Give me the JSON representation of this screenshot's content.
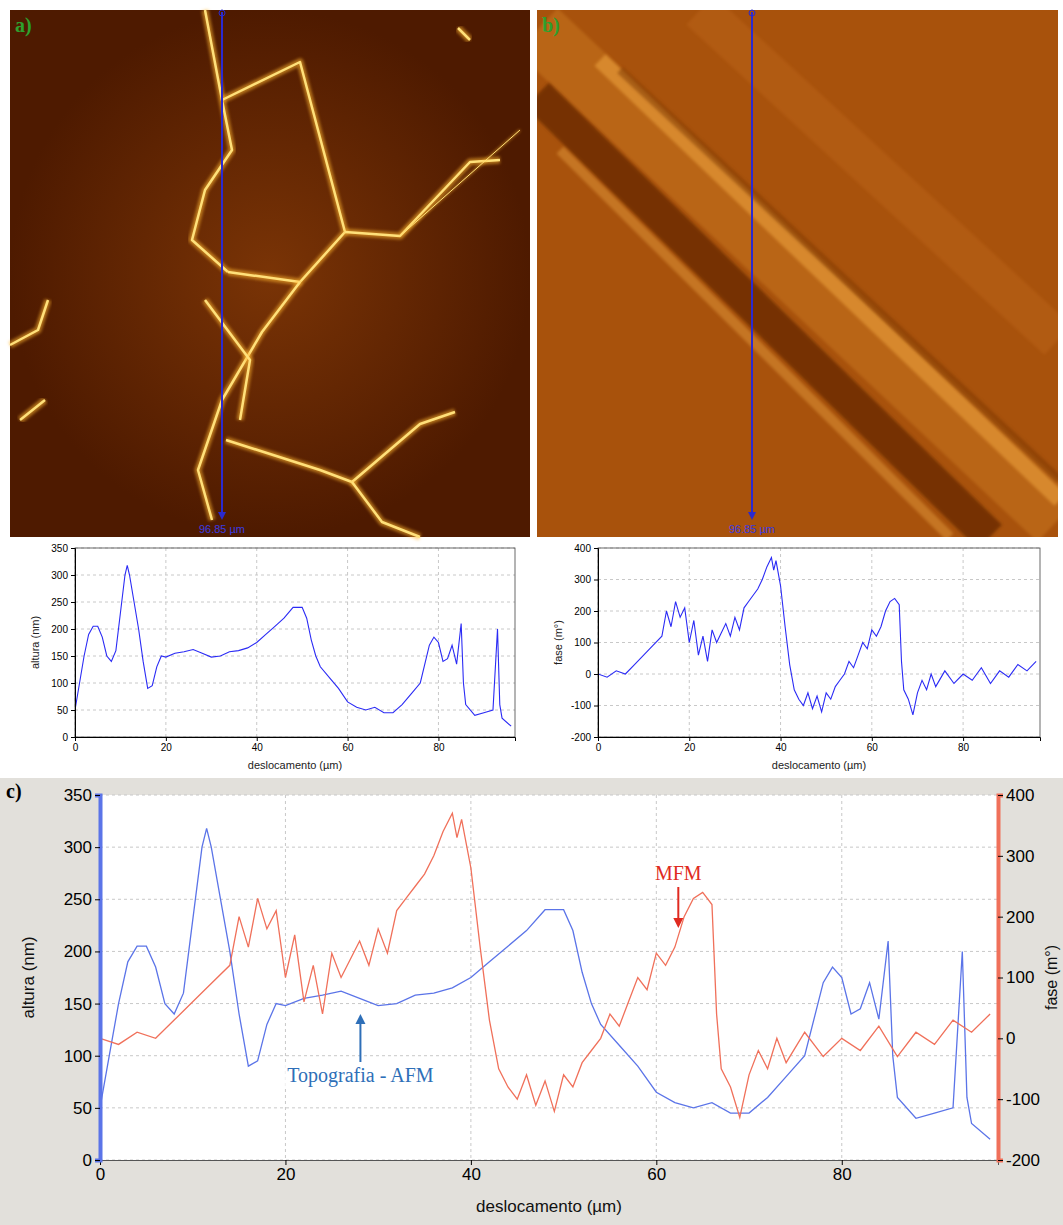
{
  "images": [
    {
      "label": "a)",
      "caption": "96.85 µm"
    },
    {
      "label": "b)",
      "caption": "96.85 µm"
    }
  ],
  "chart_data": [
    {
      "type": "line",
      "x_label": "deslocamento (µm)",
      "y_label": "altura (nm)",
      "color": "#2b2bf5",
      "grid": true,
      "xlim": [
        0,
        96.85
      ],
      "xticks": [
        0,
        20,
        40,
        60,
        80
      ],
      "ylim": [
        0,
        350
      ],
      "yticks": [
        0,
        50,
        100,
        150,
        200,
        250,
        300,
        350
      ],
      "x": [
        0,
        1,
        2,
        3,
        4,
        5,
        6,
        7,
        8,
        9,
        10,
        11,
        11.5,
        12,
        13,
        14,
        15,
        16,
        17,
        18,
        19,
        20,
        22,
        24,
        26,
        28,
        30,
        32,
        34,
        36,
        38,
        40,
        42,
        44,
        46,
        48,
        50,
        51,
        52,
        53,
        54,
        56,
        58,
        60,
        62,
        64,
        66,
        68,
        70,
        72,
        74,
        76,
        78,
        79,
        80,
        81,
        82,
        83,
        84,
        85,
        85.5,
        86,
        88,
        90,
        92,
        93,
        93.5,
        94,
        96
      ],
      "values": [
        50,
        100,
        150,
        190,
        205,
        205,
        185,
        150,
        140,
        160,
        230,
        300,
        318,
        300,
        250,
        200,
        140,
        90,
        95,
        130,
        150,
        148,
        155,
        158,
        162,
        155,
        148,
        150,
        158,
        160,
        165,
        175,
        190,
        205,
        220,
        240,
        240,
        220,
        180,
        150,
        130,
        110,
        90,
        65,
        55,
        50,
        55,
        45,
        45,
        60,
        80,
        100,
        170,
        185,
        175,
        140,
        145,
        170,
        135,
        210,
        100,
        60,
        40,
        45,
        50,
        200,
        60,
        35,
        20
      ]
    },
    {
      "type": "line",
      "x_label": "deslocamento (µm)",
      "y_label": "fase (m°)",
      "color": "#2b2bf5",
      "grid": true,
      "xlim": [
        0,
        96.85
      ],
      "xticks": [
        0,
        20,
        40,
        60,
        80
      ],
      "ylim": [
        -200,
        400
      ],
      "yticks": [
        -200,
        -100,
        0,
        100,
        200,
        300,
        400
      ],
      "x": [
        0,
        2,
        4,
        6,
        8,
        10,
        12,
        14,
        15,
        16,
        17,
        18,
        19,
        20,
        21,
        22,
        23,
        24,
        25,
        26,
        27,
        28,
        29,
        30,
        31,
        32,
        33,
        34,
        35,
        36,
        37,
        38,
        38.5,
        39,
        40,
        41,
        42,
        43,
        44,
        45,
        46,
        47,
        48,
        49,
        50,
        51,
        52,
        53,
        54,
        55,
        56,
        57,
        58,
        59,
        60,
        61,
        62,
        63,
        64,
        65,
        66,
        66.5,
        67,
        68,
        69,
        70,
        71,
        72,
        73,
        74,
        76,
        78,
        80,
        82,
        84,
        86,
        88,
        90,
        92,
        94,
        96
      ],
      "values": [
        0,
        -10,
        10,
        0,
        30,
        60,
        90,
        120,
        200,
        150,
        230,
        180,
        210,
        100,
        170,
        60,
        120,
        40,
        140,
        100,
        130,
        160,
        120,
        180,
        140,
        210,
        230,
        250,
        270,
        300,
        340,
        370,
        330,
        360,
        280,
        150,
        30,
        -50,
        -80,
        -100,
        -60,
        -110,
        -70,
        -120,
        -60,
        -80,
        -40,
        -20,
        0,
        40,
        20,
        60,
        100,
        80,
        140,
        120,
        150,
        200,
        230,
        240,
        220,
        40,
        -50,
        -80,
        -130,
        -60,
        -20,
        -50,
        0,
        -40,
        10,
        -30,
        0,
        -20,
        20,
        -30,
        10,
        -10,
        30,
        10,
        40
      ]
    },
    {
      "type": "line",
      "panel_label": "c)",
      "x_label": "deslocamento (µm)",
      "y_label": "altura (nm)",
      "y2_label": "fase (m°)",
      "grid": true,
      "xlim": [
        0,
        96.85
      ],
      "xticks": [
        0,
        20,
        40,
        60,
        80
      ],
      "ylim": [
        0,
        350
      ],
      "yticks": [
        0,
        50,
        100,
        150,
        200,
        250,
        300,
        350
      ],
      "y2lim": [
        -200,
        400
      ],
      "y2ticks": [
        -200,
        -100,
        0,
        100,
        200,
        300,
        400
      ],
      "series": [
        {
          "name": "Topografia - AFM",
          "color": "#5b74e8",
          "x": [
            0,
            1,
            2,
            3,
            4,
            5,
            6,
            7,
            8,
            9,
            10,
            11,
            11.5,
            12,
            13,
            14,
            15,
            16,
            17,
            18,
            19,
            20,
            22,
            24,
            26,
            28,
            30,
            32,
            34,
            36,
            38,
            40,
            42,
            44,
            46,
            48,
            50,
            51,
            52,
            53,
            54,
            56,
            58,
            60,
            62,
            64,
            66,
            68,
            70,
            72,
            74,
            76,
            78,
            79,
            80,
            81,
            82,
            83,
            84,
            85,
            85.5,
            86,
            88,
            90,
            92,
            93,
            93.5,
            94,
            96
          ],
          "values": [
            50,
            100,
            150,
            190,
            205,
            205,
            185,
            150,
            140,
            160,
            230,
            300,
            318,
            300,
            250,
            200,
            140,
            90,
            95,
            130,
            150,
            148,
            155,
            158,
            162,
            155,
            148,
            150,
            158,
            160,
            165,
            175,
            190,
            205,
            220,
            240,
            240,
            220,
            180,
            150,
            130,
            110,
            90,
            65,
            55,
            50,
            55,
            45,
            45,
            60,
            80,
            100,
            170,
            185,
            175,
            140,
            145,
            170,
            135,
            210,
            100,
            60,
            40,
            45,
            50,
            200,
            60,
            35,
            20
          ]
        },
        {
          "name": "MFM",
          "color": "#f0705a",
          "axis": "y2",
          "x": [
            0,
            2,
            4,
            6,
            8,
            10,
            12,
            14,
            15,
            16,
            17,
            18,
            19,
            20,
            21,
            22,
            23,
            24,
            25,
            26,
            27,
            28,
            29,
            30,
            31,
            32,
            33,
            34,
            35,
            36,
            37,
            38,
            38.5,
            39,
            40,
            41,
            42,
            43,
            44,
            45,
            46,
            47,
            48,
            49,
            50,
            51,
            52,
            53,
            54,
            55,
            56,
            57,
            58,
            59,
            60,
            61,
            62,
            63,
            64,
            65,
            66,
            66.5,
            67,
            68,
            69,
            70,
            71,
            72,
            73,
            74,
            76,
            78,
            80,
            82,
            84,
            86,
            88,
            90,
            92,
            94,
            96
          ],
          "values": [
            0,
            -10,
            10,
            0,
            30,
            60,
            90,
            120,
            200,
            150,
            230,
            180,
            210,
            100,
            170,
            60,
            120,
            40,
            140,
            100,
            130,
            160,
            120,
            180,
            140,
            210,
            230,
            250,
            270,
            300,
            340,
            370,
            330,
            360,
            280,
            150,
            30,
            -50,
            -80,
            -100,
            -60,
            -110,
            -70,
            -120,
            -60,
            -80,
            -40,
            -20,
            0,
            40,
            20,
            60,
            100,
            80,
            140,
            120,
            150,
            200,
            230,
            240,
            220,
            40,
            -50,
            -80,
            -130,
            -60,
            -20,
            -50,
            0,
            -40,
            10,
            -30,
            0,
            -20,
            20,
            -30,
            10,
            -10,
            30,
            10,
            40
          ]
        }
      ]
    }
  ]
}
